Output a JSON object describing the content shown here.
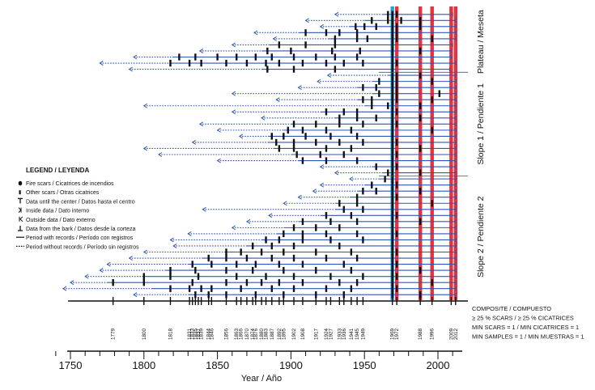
{
  "chart_data": {
    "type": "fire-scar chronology",
    "xlabel": "Year / Año",
    "xlim": [
      1740,
      2018
    ],
    "major_ticks": [
      1750,
      1800,
      1850,
      1900,
      1950,
      2000
    ],
    "zones": [
      {
        "label": "Plateau / Meseta",
        "n_series": 10
      },
      {
        "label": "Slope 1 / Pendiente 1",
        "n_series": 17
      },
      {
        "label": "Slope 2 / Pendiente 2",
        "n_series": 20
      }
    ],
    "legend": {
      "title": "LEGEND /  LEYENDA",
      "items": [
        {
          "symbol": "fire-scar",
          "label": "Fire scars /  Cicatrices de incendios"
        },
        {
          "symbol": "other-scar",
          "label": "Other scars /  Otras cicatrices"
        },
        {
          "symbol": "pith",
          "label": "Data until the center / Datos hasta el centro"
        },
        {
          "symbol": "inner",
          "label": "Inside data / Dato interno"
        },
        {
          "symbol": "outer",
          "label": "Outside data / Dato externo"
        },
        {
          "symbol": "bark",
          "label": "Data from the bark / Datos desde la corteza"
        },
        {
          "symbol": "recording",
          "label": "Period with records / Período con registros"
        },
        {
          "symbol": "nonrecording",
          "label": "Period without records /  Período sin registros"
        }
      ]
    },
    "composite_labels": [
      "COMPOSITE / COMPUESTO",
      "≥ 25 % SCARS / ≥ 25 % CICATRICES",
      "MIN SCARS = 1 / MIN CICATRICES = 1",
      "MIN SAMPLES = 1 / MIN MUESTRAS = 1"
    ],
    "fire_years": [
      1779,
      1800,
      1818,
      1831,
      1833,
      1835,
      1837,
      1839,
      1844,
      1846,
      1856,
      1863,
      1866,
      1870,
      1874,
      1876,
      1880,
      1883,
      1887,
      1892,
      1895,
      1902,
      1908,
      1917,
      1924,
      1927,
      1933,
      1936,
      1941,
      1945,
      1949,
      1969,
      1972,
      1988,
      1996,
      2009,
      2012
    ],
    "fire_year_labels": [
      "1779",
      "1800",
      "1818",
      "1831",
      "1833",
      "1835",
      "1837",
      "1839",
      "1844",
      "1846",
      "1856",
      "1863",
      "1866",
      "1870",
      "1874",
      "1876",
      "1880",
      "1883",
      "1887",
      "1892",
      "1895",
      "1902",
      "1908",
      "1917",
      "1924",
      "1927",
      "1933",
      "1936",
      "1941",
      "1945",
      "1949",
      "1969",
      "1972",
      "1988",
      "1996",
      "2009",
      "2012"
    ],
    "widespread_years_red": [
      1972,
      1988,
      1996,
      2009,
      2012
    ],
    "widespread_years_blue": [
      1969
    ],
    "series": [
      {
        "start": 1930,
        "rec_start": 1962,
        "end": 2010,
        "scars": [
          1966,
          1969,
          1972
        ]
      },
      {
        "start": 1910,
        "rec_start": 1950,
        "end": 2012,
        "scars": [
          1955,
          1966,
          1969,
          1975,
          1988
        ]
      },
      {
        "start": 1920,
        "rec_start": 1940,
        "end": 2012,
        "scars": [
          1944,
          1950,
          1958,
          1969,
          1972,
          1988
        ]
      },
      {
        "start": 1875,
        "rec_start": 1905,
        "end": 2012,
        "scars": [
          1910,
          1924,
          1933,
          1945,
          1969,
          1972
        ]
      },
      {
        "start": 1888,
        "rec_start": 1925,
        "end": 2012,
        "scars": [
          1930,
          1945,
          1952,
          1969,
          1972,
          1996
        ]
      },
      {
        "start": 1860,
        "rec_start": 1885,
        "end": 2010,
        "scars": [
          1892,
          1910,
          1930,
          1969
        ]
      },
      {
        "start": 1838,
        "rec_start": 1880,
        "end": 2009,
        "scars": [
          1884,
          1900,
          1928,
          1947,
          1969,
          1988
        ]
      },
      {
        "start": 1793,
        "rec_start": 1820,
        "end": 2009,
        "scars": [
          1824,
          1835,
          1850,
          1863,
          1876,
          1887,
          1902,
          1917,
          1930,
          1945,
          1969
        ]
      },
      {
        "start": 1770,
        "rec_start": 1818,
        "end": 2012,
        "scars": [
          1818,
          1831,
          1839,
          1856,
          1870,
          1883,
          1892,
          1908,
          1924,
          1936,
          1949,
          1969,
          1972
        ]
      },
      {
        "start": 1790,
        "rec_start": 1880,
        "end": 2008,
        "scars": [
          1884,
          1902,
          1930,
          1969
        ]
      },
      {
        "start": 1925,
        "rec_start": 1966,
        "end": 2012,
        "scars": [
          1969,
          1972,
          1988
        ]
      },
      {
        "start": 1918,
        "rec_start": 1955,
        "end": 2012,
        "scars": [
          1960,
          1969,
          1972,
          1996
        ]
      },
      {
        "start": 1905,
        "rec_start": 1945,
        "end": 2012,
        "scars": [
          1949,
          1958,
          1969,
          1972
        ]
      },
      {
        "start": 1860,
        "rec_start": 1955,
        "end": 2012,
        "scars": [
          1960,
          1969,
          1972,
          2001
        ]
      },
      {
        "start": 1890,
        "rec_start": 1945,
        "end": 2012,
        "scars": [
          1949,
          1955,
          1969,
          1972,
          1996
        ]
      },
      {
        "start": 1800,
        "rec_start": 1950,
        "end": 2012,
        "scars": [
          1955,
          1966,
          1969,
          1988
        ]
      },
      {
        "start": 1860,
        "rec_start": 1920,
        "end": 2012,
        "scars": [
          1924,
          1936,
          1945,
          1969,
          1972
        ]
      },
      {
        "start": 1880,
        "rec_start": 1930,
        "end": 2012,
        "scars": [
          1933,
          1945,
          1958,
          1969,
          1988
        ]
      },
      {
        "start": 1838,
        "rec_start": 1900,
        "end": 2012,
        "scars": [
          1902,
          1917,
          1933,
          1949,
          1969,
          1972
        ]
      },
      {
        "start": 1850,
        "rec_start": 1895,
        "end": 2012,
        "scars": [
          1898,
          1908,
          1924,
          1941,
          1969,
          1996
        ]
      },
      {
        "start": 1865,
        "rec_start": 1885,
        "end": 2012,
        "scars": [
          1887,
          1895,
          1910,
          1927,
          1945,
          1969
        ]
      },
      {
        "start": 1833,
        "rec_start": 1885,
        "end": 2012,
        "scars": [
          1890,
          1902,
          1917,
          1933,
          1949,
          1969,
          1972
        ]
      },
      {
        "start": 1800,
        "rec_start": 1888,
        "end": 2012,
        "scars": [
          1892,
          1902,
          1924,
          1941,
          1969,
          1988
        ]
      },
      {
        "start": 1810,
        "rec_start": 1900,
        "end": 2012,
        "scars": [
          1904,
          1920,
          1936,
          1969,
          1972
        ]
      },
      {
        "start": 1850,
        "rec_start": 1905,
        "end": 2012,
        "scars": [
          1908,
          1924,
          1945,
          1969
        ]
      },
      {
        "start": 1920,
        "rec_start": 1955,
        "end": 2012,
        "scars": [
          1958,
          1969,
          1972
        ]
      },
      {
        "start": 1930,
        "rec_start": 1962,
        "end": 2012,
        "scars": [
          1966,
          1969,
          1988
        ]
      },
      {
        "start": 1940,
        "rec_start": 1960,
        "end": 2012,
        "scars": [
          1964,
          1969
        ]
      },
      {
        "start": 1920,
        "rec_start": 1950,
        "end": 2012,
        "scars": [
          1955,
          1969,
          1972
        ]
      },
      {
        "start": 1915,
        "rec_start": 1945,
        "end": 2012,
        "scars": [
          1949,
          1958,
          1969,
          1988
        ]
      },
      {
        "start": 1905,
        "rec_start": 1940,
        "end": 2012,
        "scars": [
          1945,
          1969,
          1972
        ]
      },
      {
        "start": 1895,
        "rec_start": 1930,
        "end": 2012,
        "scars": [
          1933,
          1945,
          1969,
          1996
        ]
      },
      {
        "start": 1840,
        "rec_start": 1930,
        "end": 2012,
        "scars": [
          1936,
          1949,
          1969
        ]
      },
      {
        "start": 1885,
        "rec_start": 1920,
        "end": 2012,
        "scars": [
          1924,
          1941,
          1969,
          1972
        ]
      },
      {
        "start": 1870,
        "rec_start": 1905,
        "end": 2012,
        "scars": [
          1908,
          1927,
          1945,
          1969,
          1988
        ]
      },
      {
        "start": 1860,
        "rec_start": 1895,
        "end": 2012,
        "scars": [
          1902,
          1917,
          1933,
          1969
        ]
      },
      {
        "start": 1830,
        "rec_start": 1890,
        "end": 2012,
        "scars": [
          1895,
          1908,
          1924,
          1945,
          1969,
          1972
        ]
      },
      {
        "start": 1818,
        "rec_start": 1880,
        "end": 2012,
        "scars": [
          1883,
          1892,
          1908,
          1927,
          1949,
          1969
        ]
      },
      {
        "start": 1820,
        "rec_start": 1870,
        "end": 2012,
        "scars": [
          1874,
          1887,
          1902,
          1933,
          1969
        ]
      },
      {
        "start": 1800,
        "rec_start": 1855,
        "end": 2012,
        "scars": [
          1856,
          1866,
          1880,
          1895,
          1917,
          1941,
          1969,
          1972
        ]
      },
      {
        "start": 1790,
        "rec_start": 1840,
        "end": 2012,
        "scars": [
          1844,
          1856,
          1870,
          1887,
          1902,
          1924,
          1945,
          1969
        ]
      },
      {
        "start": 1775,
        "rec_start": 1830,
        "end": 2012,
        "scars": [
          1833,
          1846,
          1863,
          1876,
          1892,
          1908,
          1936,
          1969,
          1972
        ]
      },
      {
        "start": 1770,
        "rec_start": 1815,
        "end": 2012,
        "scars": [
          1818,
          1835,
          1856,
          1874,
          1895,
          1917,
          1941,
          1969,
          1988
        ]
      },
      {
        "start": 1760,
        "rec_start": 1800,
        "end": 2012,
        "scars": [
          1800,
          1818,
          1837,
          1863,
          1883,
          1902,
          1927,
          1949,
          1969,
          1972
        ]
      },
      {
        "start": 1750,
        "rec_start": 1775,
        "end": 2012,
        "scars": [
          1779,
          1800,
          1833,
          1856,
          1870,
          1880,
          1892,
          1908,
          1933,
          1945,
          1969,
          1996
        ]
      },
      {
        "start": 1745,
        "rec_start": 1805,
        "end": 2012,
        "scars": [
          1818,
          1831,
          1839,
          1846,
          1866,
          1887,
          1902,
          1924,
          1941,
          1969,
          1972
        ]
      },
      {
        "start": 1793,
        "rec_start": 1830,
        "end": 2012,
        "scars": [
          1835,
          1844,
          1856,
          1876,
          1895,
          1917,
          1936,
          1969,
          1988
        ]
      }
    ]
  }
}
